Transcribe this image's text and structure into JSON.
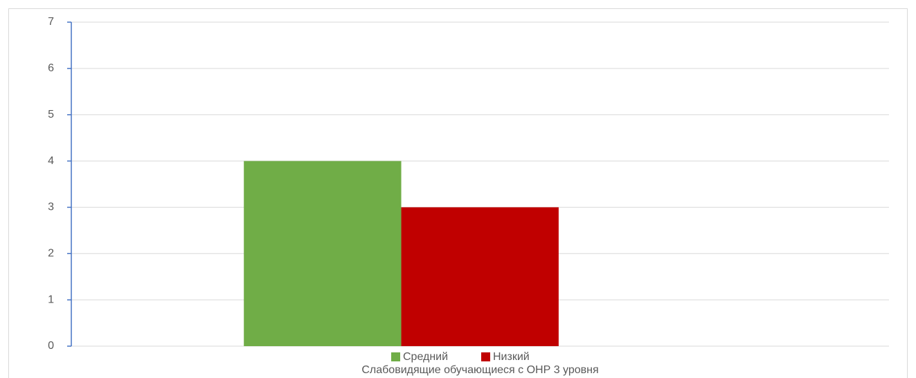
{
  "chart_data": {
    "type": "bar",
    "categories": [
      "Слабовидящие обучающиеся с ОНР 3 уровня"
    ],
    "series": [
      {
        "name": "Средний",
        "color": "#70ad47",
        "values": [
          4
        ]
      },
      {
        "name": "Низкий",
        "color": "#c00000",
        "values": [
          3
        ]
      }
    ],
    "ylim": [
      0,
      7
    ],
    "yticks": [
      0,
      1,
      2,
      3,
      4,
      5,
      6,
      7
    ],
    "grid": true,
    "legend": "bottom"
  }
}
